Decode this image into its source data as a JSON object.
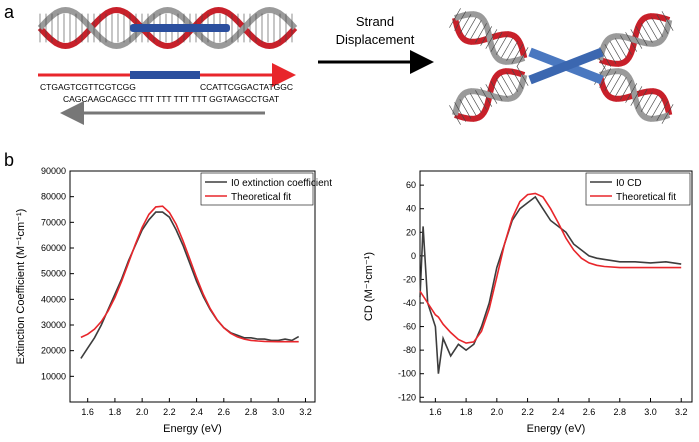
{
  "panel_a": {
    "label": "a",
    "top_sequence_left": "CTGAGTCGTTCGTCGG",
    "top_sequence_right": "CCATTCGGACTATGGC",
    "bottom_sequence": "CAGCAAGCAGCC TTT TTT TTT TTT GGTAAGCCTGAT",
    "arrow_label_line1": "Strand",
    "arrow_label_line2": "Displacement"
  },
  "panel_b_label": "b",
  "chart_data": [
    {
      "type": "line",
      "xlabel": "Energy (eV)",
      "ylabel": "Extinction Coefficient (M⁻¹cm⁻¹)",
      "x": [
        1.55,
        1.6,
        1.65,
        1.7,
        1.75,
        1.8,
        1.85,
        1.9,
        1.95,
        2.0,
        2.05,
        2.1,
        2.15,
        2.2,
        2.25,
        2.3,
        2.35,
        2.4,
        2.45,
        2.5,
        2.55,
        2.6,
        2.65,
        2.7,
        2.75,
        2.8,
        2.85,
        2.9,
        2.95,
        3.0,
        3.05,
        3.1,
        3.15
      ],
      "series": [
        {
          "name": "I0 extinction coefficient",
          "color": "#3d3d3d",
          "values": [
            17000,
            21000,
            25000,
            30000,
            36000,
            42000,
            48000,
            55000,
            61000,
            67000,
            71000,
            74000,
            74000,
            72000,
            67000,
            61000,
            54000,
            47000,
            41000,
            36000,
            32000,
            29000,
            27000,
            26000,
            25000,
            25000,
            24500,
            24500,
            24000,
            24000,
            24500,
            24000,
            25500
          ]
        },
        {
          "name": "Theoretical fit",
          "color": "#e8262b",
          "values": [
            25150,
            26400,
            28400,
            31350,
            35450,
            40700,
            47100,
            54200,
            61400,
            68000,
            73100,
            76000,
            76300,
            73850,
            69200,
            62800,
            55700,
            48450,
            41900,
            36400,
            32100,
            28900,
            26750,
            25350,
            24500,
            24000,
            23750,
            23600,
            23550,
            23500,
            23500,
            23500,
            23500
          ]
        }
      ],
      "xlim": [
        1.47,
        3.27
      ],
      "ylim": [
        0,
        90000
      ],
      "xticks": [
        1.6,
        1.8,
        {
          "value": 2,
          "label": "2.0"
        },
        2.2,
        2.4,
        2.6,
        2.8,
        {
          "value": 3,
          "label": "3.0"
        },
        3.2
      ],
      "yticks": [
        10000,
        20000,
        30000,
        40000,
        50000,
        60000,
        70000,
        80000,
        90000
      ],
      "legend": "upper right"
    },
    {
      "type": "line",
      "xlabel": "Energy (eV)",
      "ylabel": "CD (M⁻¹cm⁻¹)",
      "x": [
        1.5,
        1.52,
        1.55,
        1.6,
        1.62,
        1.65,
        1.7,
        1.75,
        1.8,
        1.85,
        1.9,
        1.95,
        2.0,
        2.05,
        2.1,
        2.15,
        2.2,
        2.25,
        2.3,
        2.35,
        2.4,
        2.45,
        2.5,
        2.55,
        2.6,
        2.65,
        2.7,
        2.8,
        2.9,
        3.0,
        3.1,
        3.2
      ],
      "series": [
        {
          "name": "I0 CD",
          "color": "#3d3d3d",
          "values": [
            -35,
            25,
            -40,
            -60,
            -100,
            -70,
            -85,
            -75,
            -80,
            -75,
            -60,
            -40,
            -10,
            10,
            30,
            40,
            45,
            50,
            40,
            30,
            25,
            20,
            10,
            5,
            0,
            -2,
            -3,
            -5,
            -5,
            -6,
            -5,
            -7
          ]
        },
        {
          "name": "Theoretical fit",
          "color": "#e8262b",
          "values": [
            -30,
            -34,
            -40,
            -50,
            -52,
            -58,
            -65,
            -71,
            -74,
            -73,
            -64,
            -45,
            -18,
            10,
            32,
            46,
            52,
            53,
            50,
            40,
            28,
            15,
            5,
            -2,
            -6,
            -8,
            -9,
            -10,
            -10,
            -10,
            -10,
            -10
          ]
        }
      ],
      "xlim": [
        1.5,
        3.27
      ],
      "ylim": [
        -124,
        72
      ],
      "xticks": [
        1.6,
        1.8,
        {
          "value": 2,
          "label": "2.0"
        },
        2.2,
        2.4,
        2.6,
        2.8,
        {
          "value": 3,
          "label": "3.0"
        },
        3.2
      ],
      "yticks": [
        -120,
        -100,
        -80,
        -60,
        -40,
        -20,
        0,
        20,
        40,
        60
      ],
      "legend": "upper right"
    }
  ]
}
